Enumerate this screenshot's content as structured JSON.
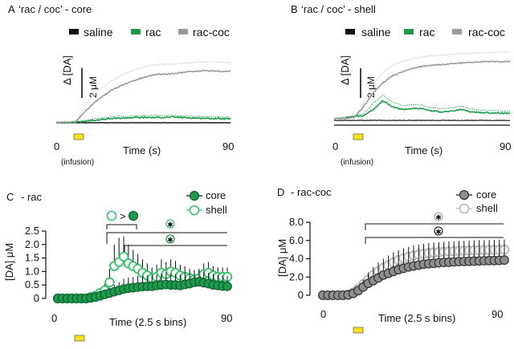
{
  "chart_data": [
    {
      "id": "A",
      "type": "line",
      "panel_label": "A",
      "title": "‘rac / coc’ - core",
      "legend": [
        "saline",
        "rac",
        "rac-coc"
      ],
      "ylabel": "Δ [DA]",
      "scale_bar_label": "2 μM",
      "scale_bar_value": 2,
      "xlabel": "Time (s)",
      "xlim": [
        0,
        90
      ],
      "x_ticks": [
        "0",
        "90"
      ],
      "ylim": [
        0,
        8
      ],
      "infusion_label": "(infusion)",
      "infusion_window": [
        5,
        10
      ],
      "series": [
        {
          "name": "saline",
          "x": [
            0,
            90
          ],
          "values": [
            0,
            0
          ]
        },
        {
          "name": "rac",
          "x": [
            0,
            10,
            20,
            30,
            40,
            50,
            60,
            70,
            80,
            90
          ],
          "values": [
            0,
            0.05,
            0.3,
            0.5,
            0.6,
            0.6,
            0.65,
            0.55,
            0.5,
            0.45
          ],
          "upper": [
            0,
            0.05,
            0.5,
            0.7,
            0.8,
            0.85,
            0.85,
            0.75,
            0.7,
            0.65
          ]
        },
        {
          "name": "rac-coc",
          "x": [
            0,
            10,
            15,
            20,
            25,
            30,
            35,
            40,
            45,
            50,
            55,
            60,
            65,
            70,
            75,
            80,
            85,
            90
          ],
          "values": [
            0,
            0.1,
            1.3,
            2.4,
            3.2,
            3.9,
            4.4,
            4.8,
            5.2,
            5.5,
            5.6,
            5.6,
            5.75,
            5.9,
            5.95,
            5.95,
            5.9,
            5.9
          ],
          "upper": [
            0,
            0.1,
            2,
            3.3,
            4.2,
            5,
            5.6,
            6,
            6.4,
            6.6,
            6.7,
            6.7,
            6.8,
            6.9,
            7,
            7,
            6.95,
            6.9
          ]
        }
      ]
    },
    {
      "id": "B",
      "type": "line",
      "panel_label": "B",
      "title": "‘rac / coc’ - shell",
      "legend": [
        "saline",
        "rac",
        "rac-coc"
      ],
      "ylabel": "Δ [DA]",
      "scale_bar_label": "2 μM",
      "scale_bar_value": 2,
      "xlabel": "Time (s)",
      "xlim": [
        0,
        90
      ],
      "x_ticks": [
        "0",
        "90"
      ],
      "ylim": [
        -0.5,
        9
      ],
      "infusion_label": "(infusion)",
      "infusion_window": [
        5,
        10
      ],
      "series": [
        {
          "name": "saline",
          "x": [
            0,
            90
          ],
          "values": [
            -0.2,
            -0.2
          ]
        },
        {
          "name": "rac",
          "x": [
            0,
            15,
            20,
            25,
            30,
            35,
            40,
            45,
            50,
            55,
            60,
            65,
            70,
            75,
            80,
            90
          ],
          "values": [
            0,
            0.4,
            1.2,
            2.3,
            1.5,
            1.2,
            1.3,
            1.3,
            1,
            0.9,
            0.95,
            1.2,
            0.9,
            0.8,
            0.75,
            0.7
          ],
          "upper": [
            0,
            0.6,
            2,
            3,
            2.1,
            1.7,
            1.8,
            1.8,
            1.4,
            1.3,
            1.4,
            1.6,
            1.3,
            1.1,
            1.05,
            1
          ]
        },
        {
          "name": "rac-coc",
          "x": [
            0,
            10,
            15,
            20,
            25,
            30,
            35,
            40,
            45,
            50,
            55,
            60,
            65,
            70,
            75,
            80,
            85,
            90
          ],
          "values": [
            0,
            0.1,
            1.5,
            3.3,
            4.6,
            5.5,
            6,
            6.4,
            6.7,
            6.85,
            6.9,
            7,
            7.1,
            7.2,
            7.25,
            7.3,
            7.3,
            7.3
          ],
          "upper": [
            0,
            0.1,
            2,
            4.5,
            5.9,
            6.8,
            7.3,
            7.6,
            7.9,
            8,
            8.1,
            8.2,
            8.3,
            8.35,
            8.4,
            8.45,
            8.5,
            8.5
          ]
        }
      ]
    },
    {
      "id": "C",
      "type": "scatter",
      "panel_label": "C",
      "title": "- rac",
      "legend": [
        "core",
        "shell"
      ],
      "ylabel": "[DA] μM",
      "xlabel": "Time (2.5 s bins)",
      "xlim": [
        0,
        90
      ],
      "x_ticks": [
        "0",
        "90"
      ],
      "ylim": [
        0,
        2.5
      ],
      "y_ticks": [
        "0",
        "0.5",
        "1.0",
        "1.5",
        "2.0",
        "2.5"
      ],
      "y_tick_values": [
        0,
        0.5,
        1.0,
        1.5,
        2.0,
        2.5
      ],
      "annotation_text": ">",
      "infusion_window": [
        10,
        14
      ],
      "series": [
        {
          "name": "core",
          "x_step": 2.5,
          "values": [
            0,
            0,
            0,
            0,
            0,
            0,
            0,
            0.02,
            0.05,
            0.1,
            0.15,
            0.2,
            0.25,
            0.3,
            0.35,
            0.38,
            0.4,
            0.42,
            0.44,
            0.45,
            0.45,
            0.48,
            0.5,
            0.52,
            0.5,
            0.5,
            0.48,
            0.52,
            0.55,
            0.6,
            0.62,
            0.58,
            0.55,
            0.5,
            0.48,
            0.46,
            0.45
          ],
          "errors": [
            0,
            0,
            0,
            0,
            0,
            0,
            0,
            0.02,
            0.05,
            0.08,
            0.12,
            0.2,
            0.25,
            0.3,
            0.38,
            0.4,
            0.4,
            0.42,
            0.4,
            0.4,
            0.42,
            0.4,
            0.42,
            0.45,
            0.42,
            0.4,
            0.4,
            0.45,
            0.45,
            0.45,
            0.45,
            0.42,
            0.4,
            0.4,
            0.4,
            0.38,
            0.38
          ]
        },
        {
          "name": "shell",
          "x_step": 2.5,
          "values": [
            0,
            0,
            0,
            0,
            0,
            0,
            0,
            0.05,
            0.1,
            0.2,
            0.3,
            0.6,
            1.2,
            1.35,
            1.55,
            1.3,
            1.2,
            1.1,
            0.95,
            0.85,
            0.75,
            0.8,
            0.95,
            0.9,
            1.0,
            0.95,
            0.85,
            0.8,
            0.75,
            0.7,
            0.75,
            0.9,
            0.95,
            0.85,
            0.8,
            0.8,
            0.8
          ],
          "errors": [
            0,
            0,
            0,
            0,
            0,
            0,
            0,
            0.05,
            0.1,
            0.15,
            0.25,
            0.5,
            0.8,
            0.9,
            0.75,
            0.7,
            0.6,
            0.55,
            0.5,
            0.45,
            0.4,
            0.45,
            0.5,
            0.45,
            0.45,
            0.45,
            0.4,
            0.4,
            0.35,
            0.35,
            0.35,
            0.4,
            0.4,
            0.35,
            0.35,
            0.35,
            0.35
          ]
        }
      ]
    },
    {
      "id": "D",
      "type": "scatter",
      "panel_label": "D",
      "title": "- rac-coc",
      "legend": [
        "core",
        "shell"
      ],
      "ylabel": "[DA] μM",
      "xlabel": "Time (2.5 s bins)",
      "xlim": [
        0,
        90
      ],
      "x_ticks": [
        "0",
        "90"
      ],
      "ylim": [
        0,
        8
      ],
      "y_ticks": [
        "0",
        "2.0",
        "4.0",
        "6.0",
        "8.0"
      ],
      "y_tick_values": [
        0,
        2,
        4,
        6,
        8
      ],
      "infusion_window": [
        10,
        14
      ],
      "series": [
        {
          "name": "core",
          "x_step": 2.5,
          "values": [
            0,
            0,
            0,
            0,
            0,
            0.05,
            0.2,
            0.5,
            0.9,
            1.3,
            1.6,
            1.9,
            2.2,
            2.4,
            2.6,
            2.8,
            2.95,
            3.1,
            3.2,
            3.3,
            3.4,
            3.45,
            3.5,
            3.55,
            3.6,
            3.62,
            3.65,
            3.68,
            3.7,
            3.72,
            3.74,
            3.76,
            3.78,
            3.8,
            3.8,
            3.82,
            3.85
          ],
          "errors": [
            0,
            0,
            0,
            0,
            0,
            0.05,
            0.2,
            0.5,
            0.8,
            1,
            1.2,
            1.3,
            1.4,
            1.5,
            1.6,
            1.6,
            1.7,
            1.7,
            1.7,
            1.8,
            1.8,
            1.8,
            1.8,
            1.8,
            1.8,
            1.8,
            1.8,
            1.8,
            1.8,
            1.8,
            1.8,
            1.8,
            1.8,
            1.8,
            1.8,
            1.8,
            1.8
          ]
        },
        {
          "name": "shell",
          "x_step": 2.5,
          "values": [
            0,
            0,
            0,
            0,
            0,
            0.05,
            0.3,
            0.7,
            1.2,
            1.7,
            2.2,
            2.6,
            3.0,
            3.3,
            3.6,
            3.85,
            4.05,
            4.2,
            4.35,
            4.45,
            4.55,
            4.62,
            4.68,
            4.72,
            4.76,
            4.8,
            4.82,
            4.85,
            4.87,
            4.9,
            4.92,
            4.94,
            4.95,
            4.96,
            4.97,
            4.98,
            5.0
          ],
          "errors": [
            0,
            0,
            0,
            0,
            0,
            0.05,
            0.2,
            0.4,
            0.6,
            0.8,
            0.9,
            1,
            1,
            1.05,
            1.1,
            1.1,
            1.1,
            1.1,
            1.1,
            1.1,
            1.1,
            1.1,
            1.1,
            1.1,
            1.1,
            1.1,
            1.1,
            1.1,
            1.1,
            1.1,
            1.1,
            1.1,
            1.1,
            1.1,
            1.1,
            1.1,
            1.1
          ]
        }
      ]
    }
  ],
  "colors": {
    "saline": "#111111",
    "rac": "#1a9a4a",
    "rac_coc": "#9a9a9a",
    "rac_coc_sem": "#bdbdbd",
    "core_green": "#1f9a4c",
    "shell_green": "#37c06b",
    "core_gray": "#8e8e8e",
    "shell_gray": "#bcbcbc",
    "infusion_fill": "#f6e21a",
    "axis": "#111111"
  }
}
